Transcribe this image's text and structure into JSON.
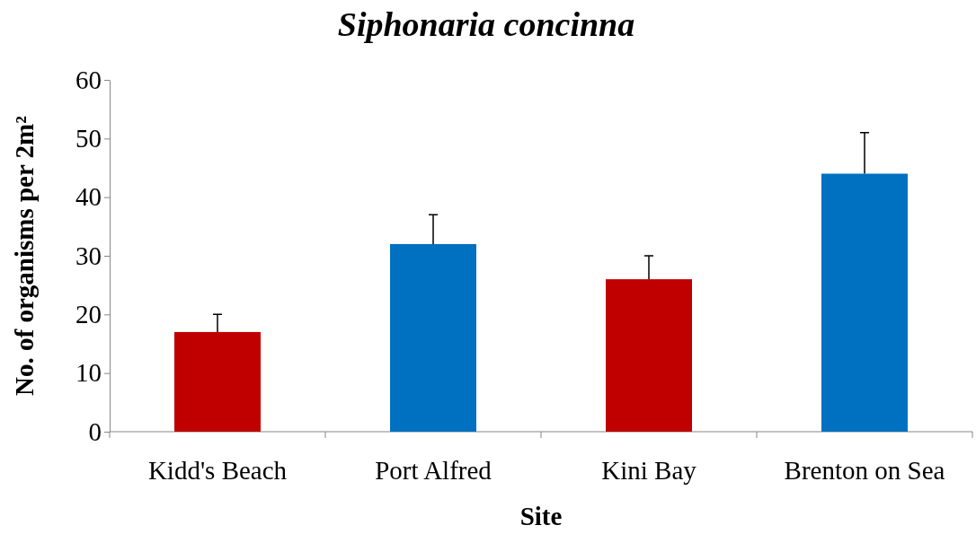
{
  "chart_data": {
    "type": "bar",
    "title": "Siphonaria concinna",
    "xlabel": "Site",
    "ylabel": "No. of organisms per 2m²",
    "categories": [
      "Kidd's Beach",
      "Port Alfred",
      "Kini Bay",
      "Brenton on Sea"
    ],
    "values": [
      17,
      32,
      26,
      44
    ],
    "colors": [
      "#c00000",
      "#0070c0",
      "#c00000",
      "#0070c0"
    ],
    "errors": [
      [
        17,
        20
      ],
      [
        32,
        37
      ],
      [
        26,
        30
      ],
      [
        44,
        51
      ]
    ],
    "ylim": [
      0,
      60
    ],
    "yticks": [
      0,
      10,
      20,
      30,
      40,
      50,
      60
    ],
    "grid": false
  }
}
